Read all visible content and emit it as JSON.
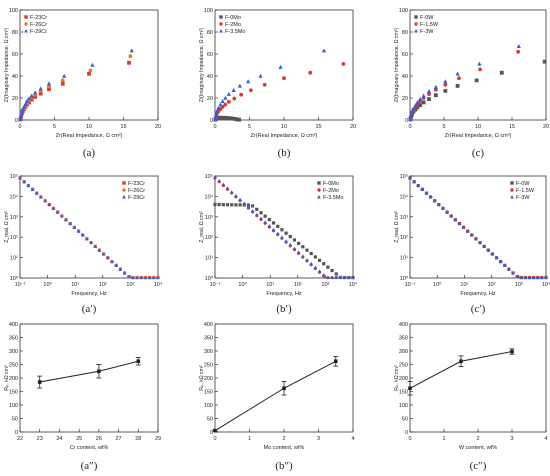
{
  "colors": {
    "red": "#e0362f",
    "orange": "#e07a2e",
    "blue": "#2f5fd8",
    "black": "#222222",
    "grey": "#555555"
  },
  "chart_data": [
    {
      "type": "scatter",
      "caption": "(a)",
      "xlabel": "Zr(Real Impedance, Ω cm²)",
      "ylabel": "Zi(Imaginary Impedance, Ω cm²)",
      "xlim": [
        0,
        20
      ],
      "ylim": [
        0,
        100
      ],
      "xticks": [
        0,
        5,
        10,
        15,
        20
      ],
      "yticks": [
        0,
        20,
        40,
        60,
        80,
        100
      ],
      "legend": "top-left",
      "series": [
        {
          "name": "F-23Cr",
          "marker": "square",
          "color": "#e0362f",
          "x": [
            0.05,
            0.1,
            0.15,
            0.2,
            0.3,
            0.4,
            0.6,
            0.8,
            1.0,
            1.3,
            1.7,
            2.2,
            3.0,
            4.2,
            6.2,
            10.0,
            15.8
          ],
          "y": [
            0.5,
            1.5,
            3,
            4.5,
            6.5,
            8,
            10,
            12,
            14,
            16,
            18.5,
            21,
            24,
            28,
            33,
            42,
            52
          ]
        },
        {
          "name": "F-26Cr",
          "marker": "circle",
          "color": "#e07a2e",
          "x": [
            0.05,
            0.1,
            0.15,
            0.2,
            0.3,
            0.4,
            0.6,
            0.8,
            1.0,
            1.3,
            1.7,
            2.2,
            3.0,
            4.2,
            6.2,
            10.2,
            16.0
          ],
          "y": [
            0.6,
            1.7,
            3.3,
            5,
            7,
            9,
            11,
            13,
            15.5,
            18,
            20.5,
            23,
            26.5,
            30.5,
            36,
            45,
            58
          ]
        },
        {
          "name": "F-29Cr",
          "marker": "triangle",
          "color": "#2f5fd8",
          "x": [
            0.05,
            0.1,
            0.15,
            0.2,
            0.3,
            0.4,
            0.6,
            0.8,
            1.0,
            1.3,
            1.7,
            2.2,
            3.0,
            4.2,
            6.4,
            10.5,
            16.2
          ],
          "y": [
            0.7,
            1.9,
            3.6,
            5.5,
            7.5,
            9.5,
            12,
            14.5,
            17,
            19.5,
            22,
            25,
            28.5,
            33,
            40,
            50,
            63
          ]
        }
      ]
    },
    {
      "type": "scatter",
      "caption": "(b)",
      "xlabel": "Zr(Real Impedance, Ω cm²)",
      "ylabel": "Zi(Imaginary Impedance, Ω cm²)",
      "xlim": [
        0,
        20
      ],
      "ylim": [
        0,
        100
      ],
      "xticks": [
        0,
        5,
        10,
        15,
        20
      ],
      "yticks": [
        0,
        20,
        40,
        60,
        80,
        100
      ],
      "legend": "top-left",
      "series": [
        {
          "name": "F-0Mo",
          "marker": "square",
          "color": "#555555",
          "x": [
            0.05,
            0.1,
            0.2,
            0.3,
            0.5,
            0.7,
            1.0,
            1.3,
            1.7,
            2.1,
            2.5,
            2.9,
            3.2,
            3.5
          ],
          "y": [
            0.3,
            0.8,
            1.3,
            1.6,
            1.8,
            2.0,
            2.0,
            2.0,
            1.9,
            1.7,
            1.4,
            1.0,
            0.6,
            0.3
          ]
        },
        {
          "name": "F-2Mo",
          "marker": "circle",
          "color": "#e0362f",
          "x": [
            0.05,
            0.1,
            0.2,
            0.3,
            0.5,
            0.8,
            1.1,
            1.5,
            2.0,
            2.8,
            3.8,
            5.2,
            7.2,
            10.0,
            13.8,
            18.6
          ],
          "y": [
            0.5,
            2,
            4,
            6,
            8,
            10,
            12,
            14,
            16.5,
            19.5,
            23,
            27,
            32,
            38,
            43,
            51
          ]
        },
        {
          "name": "F-3.5Mo",
          "marker": "triangle",
          "color": "#2f5fd8",
          "x": [
            0.05,
            0.1,
            0.2,
            0.3,
            0.5,
            0.8,
            1.1,
            1.5,
            2.0,
            2.7,
            3.6,
            4.8,
            6.6,
            9.5,
            15.8
          ],
          "y": [
            0.8,
            2.5,
            5,
            8,
            11,
            14,
            17,
            20,
            23.5,
            27,
            31,
            35,
            40,
            48,
            63
          ]
        }
      ]
    },
    {
      "type": "scatter",
      "caption": "(c)",
      "xlabel": "Zr(Real Impedance, Ω cm²)",
      "ylabel": "Zi(Imaginary Impedance, Ω cm²)",
      "xlim": [
        0,
        20
      ],
      "ylim": [
        0,
        100
      ],
      "xticks": [
        0,
        5,
        10,
        15,
        20
      ],
      "yticks": [
        0,
        20,
        40,
        60,
        80,
        100
      ],
      "legend": "top-left",
      "series": [
        {
          "name": "F-0W",
          "marker": "square",
          "color": "#555555",
          "x": [
            0.05,
            0.1,
            0.2,
            0.3,
            0.5,
            0.8,
            1.1,
            1.5,
            2.0,
            2.8,
            3.8,
            5.2,
            7.0,
            9.8,
            13.5,
            19.8
          ],
          "y": [
            0.5,
            1.8,
            3.5,
            5.5,
            7.5,
            9.5,
            11.5,
            13.5,
            16,
            19,
            22.5,
            26.5,
            31,
            36,
            43,
            53
          ]
        },
        {
          "name": "F-1.5W",
          "marker": "circle",
          "color": "#e0362f",
          "x": [
            0.05,
            0.1,
            0.2,
            0.3,
            0.5,
            0.8,
            1.1,
            1.5,
            2.0,
            2.8,
            3.8,
            5.2,
            7.2,
            10.3,
            15.9
          ],
          "y": [
            0.6,
            2.2,
            4.5,
            7,
            9.5,
            12,
            14.5,
            17,
            20,
            23.5,
            27.5,
            32,
            38,
            46,
            62
          ]
        },
        {
          "name": "F-3W",
          "marker": "triangle",
          "color": "#2f5fd8",
          "x": [
            0.05,
            0.1,
            0.2,
            0.3,
            0.5,
            0.8,
            1.1,
            1.5,
            2.0,
            2.8,
            3.8,
            5.2,
            7.0,
            10.2,
            16.0
          ],
          "y": [
            0.7,
            2.5,
            5,
            7.5,
            10,
            13,
            16,
            19,
            22,
            26,
            30,
            35,
            42,
            51,
            67
          ]
        }
      ]
    },
    {
      "type": "scatter",
      "caption": "(a′)",
      "xlabel": "Frequency, Hz",
      "ylabel": "Z_real, Ω cm²",
      "xscale": "log",
      "yscale": "log",
      "xlim": [
        0.1,
        10000
      ],
      "ylim": [
        1,
        100000
      ],
      "xticks": [
        0.1,
        1,
        10,
        100,
        1000,
        10000
      ],
      "xtick_labels": [
        "10⁻¹",
        "10⁰",
        "10¹",
        "10²",
        "10³",
        "10⁴"
      ],
      "yticks": [
        1,
        10,
        100,
        1000,
        10000,
        100000
      ],
      "ytick_labels": [
        "10⁰",
        "10¹",
        "10²",
        "10³",
        "10⁴",
        "10⁵"
      ],
      "legend": "top-right",
      "series": [
        {
          "name": "F-23Cr",
          "marker": "square",
          "color": "#e0362f",
          "start": 80000,
          "slope": -1.23,
          "n": 34
        },
        {
          "name": "F-26Cr",
          "marker": "circle",
          "color": "#e07a2e",
          "start": 80000,
          "slope": -1.23,
          "n": 34
        },
        {
          "name": "F-29Cr",
          "marker": "triangle",
          "color": "#2f5fd8",
          "start": 80000,
          "slope": -1.23,
          "n": 34
        }
      ]
    },
    {
      "type": "scatter",
      "caption": "(b′)",
      "xlabel": "Frequency, Hz",
      "ylabel": "Z_real, Ω cm²",
      "xscale": "log",
      "yscale": "log",
      "xlim": [
        0.1,
        10000
      ],
      "ylim": [
        1,
        100000
      ],
      "xticks": [
        0.1,
        1,
        10,
        100,
        1000,
        10000
      ],
      "xtick_labels": [
        "10⁻¹",
        "10⁰",
        "10¹",
        "10²",
        "10³",
        "10⁴"
      ],
      "yticks": [
        1,
        10,
        100,
        1000,
        10000,
        100000
      ],
      "ytick_labels": [
        "10⁰",
        "10¹",
        "10²",
        "10³",
        "10⁴",
        "10⁵"
      ],
      "legend": "top-right",
      "series": [
        {
          "name": "F-0Mo",
          "marker": "square",
          "color": "#555555",
          "plateau": 4000,
          "start": 4000,
          "slope": -1.1,
          "n": 34
        },
        {
          "name": "F-2Mo",
          "marker": "circle",
          "color": "#e0362f",
          "start": 80000,
          "slope": -1.22,
          "n": 34
        },
        {
          "name": "F-3.5Mo",
          "marker": "triangle",
          "color": "#2f5fd8",
          "start": 90000,
          "slope": -1.22,
          "n": 34
        }
      ]
    },
    {
      "type": "scatter",
      "caption": "(c′)",
      "xlabel": "Frequency, Hz",
      "ylabel": "Z_real, Ω cm²",
      "xscale": "log",
      "yscale": "log",
      "xlim": [
        0.1,
        10000
      ],
      "ylim": [
        1,
        100000
      ],
      "xticks": [
        0.1,
        1,
        10,
        100,
        1000,
        10000
      ],
      "xtick_labels": [
        "10⁻¹",
        "10⁰",
        "10¹",
        "10²",
        "10³",
        "10⁴"
      ],
      "yticks": [
        1,
        10,
        100,
        1000,
        10000,
        100000
      ],
      "ytick_labels": [
        "10⁰",
        "10¹",
        "10²",
        "10³",
        "10⁴",
        "10⁵"
      ],
      "legend": "top-right",
      "series": [
        {
          "name": "F-0W",
          "marker": "square",
          "color": "#555555",
          "start": 80000,
          "slope": -1.23,
          "n": 34
        },
        {
          "name": "F-1.5W",
          "marker": "circle",
          "color": "#e0362f",
          "start": 80000,
          "slope": -1.23,
          "n": 34
        },
        {
          "name": "F-3W",
          "marker": "triangle",
          "color": "#2f5fd8",
          "start": 80000,
          "slope": -1.23,
          "n": 34
        }
      ]
    },
    {
      "type": "line",
      "caption": "(a″)",
      "xlabel": "Cr content, wt%",
      "ylabel": "Rₚ, kΩ cm²",
      "xlim": [
        22,
        29
      ],
      "ylim": [
        0,
        400
      ],
      "xticks": [
        22,
        23,
        24,
        25,
        26,
        27,
        28,
        29
      ],
      "yticks": [
        0,
        50,
        100,
        150,
        200,
        250,
        300,
        350,
        400
      ],
      "series": [
        {
          "x": [
            23,
            26,
            28
          ],
          "y": [
            185,
            225,
            262
          ],
          "err": [
            22,
            25,
            14
          ],
          "color": "#222222"
        }
      ]
    },
    {
      "type": "line",
      "caption": "(b″)",
      "xlabel": "Mo content, wt%",
      "ylabel": "Rₚ, kΩ cm²",
      "xlim": [
        0,
        4
      ],
      "ylim": [
        0,
        400
      ],
      "xticks": [
        0,
        1,
        2,
        3,
        4
      ],
      "yticks": [
        0,
        50,
        100,
        150,
        200,
        250,
        300,
        350,
        400
      ],
      "series": [
        {
          "x": [
            0,
            2,
            3.5
          ],
          "y": [
            5,
            162,
            262
          ],
          "err": [
            3,
            25,
            18
          ],
          "color": "#222222"
        }
      ]
    },
    {
      "type": "line",
      "caption": "(c″)",
      "xlabel": "W content, wt%",
      "ylabel": "Rₚ, kΩ cm²",
      "xlim": [
        0,
        4
      ],
      "ylim": [
        0,
        400
      ],
      "xticks": [
        0,
        1,
        2,
        3,
        4
      ],
      "yticks": [
        0,
        50,
        100,
        150,
        200,
        250,
        300,
        350,
        400
      ],
      "series": [
        {
          "x": [
            0,
            1.5,
            3
          ],
          "y": [
            162,
            262,
            298
          ],
          "err": [
            25,
            20,
            10
          ],
          "color": "#222222"
        }
      ]
    }
  ]
}
